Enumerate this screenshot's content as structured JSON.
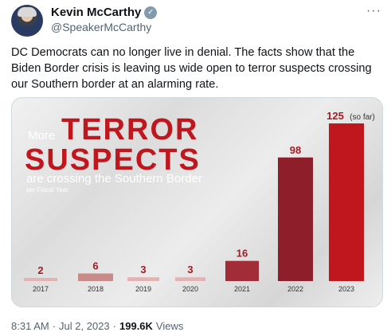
{
  "tweet": {
    "author_name": "Kevin McCarthy",
    "handle": "@SpeakerMcCarthy",
    "more_icon": "more-icon",
    "verified_icon": "verified-icon",
    "text": "DC Democrats can no longer live in denial. The facts show that the Biden Border crisis is leaving us wide open to terror suspects crossing our Southern border at an alarming rate.",
    "time": "8:31 AM",
    "date": "Jul 2, 2023",
    "views_count": "199.6K",
    "views_label": "Views",
    "separator": "·"
  },
  "chart_data": {
    "type": "bar",
    "title_pre": "More",
    "title_line1": "TERROR",
    "title_line2": "SUSPECTS",
    "subtitle": "are crossing the Southern Border",
    "note": "per Fiscal Year",
    "categories": [
      "2017",
      "2018",
      "2019",
      "2020",
      "2021",
      "2022",
      "2023"
    ],
    "values": [
      2,
      6,
      3,
      3,
      16,
      98,
      125
    ],
    "value_labels": [
      "2",
      "6",
      "3",
      "3",
      "16",
      "98",
      "125"
    ],
    "last_suffix": "(so far)",
    "colors": [
      "#e3b3b3",
      "#c98a8a",
      "#e3b3b3",
      "#e3b3b3",
      "#a22d38",
      "#8e1f2a",
      "#c0171f"
    ],
    "label_color": "#a21c24",
    "ylim": [
      0,
      125
    ]
  }
}
